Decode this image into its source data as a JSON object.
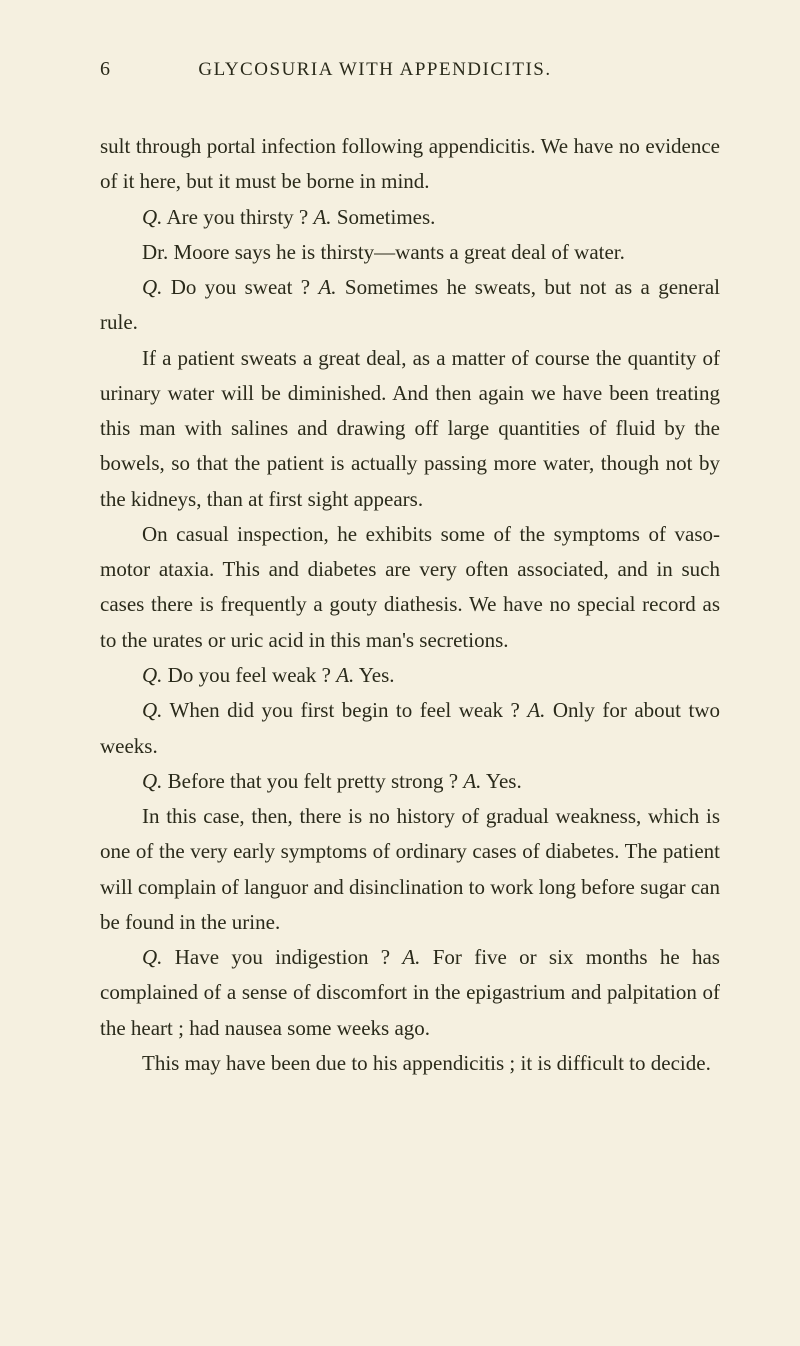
{
  "header": {
    "page_number": "6",
    "title": "GLYCOSURIA WITH APPENDICITIS."
  },
  "paragraphs": {
    "p1": "sult through portal infection following appendicitis. We have no evidence of it here, but it must be borne in mind.",
    "p2_q": "Q.",
    "p2_qtext": " Are you thirsty ?  ",
    "p2_a": "A.",
    "p2_atext": " Sometimes.",
    "p3": "Dr. Moore says he is thirsty—wants a great deal of water.",
    "p4_q": "Q.",
    "p4_qtext": " Do you sweat ?  ",
    "p4_a": "A.",
    "p4_atext": " Sometimes he sweats, but not as a general rule.",
    "p5": "If a patient sweats a great deal, as a matter of course the quantity of urinary water will be diminished. And then again we have been treating this man with salines and drawing off large quantities of fluid by the bowels, so that the patient is actually passing more water, though not by the kidneys, than at first sight appears.",
    "p6": "On casual inspection, he exhibits some of the symptoms of vaso-motor ataxia. This and diabetes are very often associated, and in such cases there is frequently a gouty diathesis. We have no special record as to the urates or uric acid in this man's secretions.",
    "p7_q": "Q.",
    "p7_qtext": " Do you feel weak ?  ",
    "p7_a": "A.",
    "p7_atext": " Yes.",
    "p8_q": "Q.",
    "p8_qtext": " When did you first begin to feel weak ?  ",
    "p8_a": "A.",
    "p8_atext": " Only for about two weeks.",
    "p9_q": "Q.",
    "p9_qtext": " Before that you felt pretty strong ?  ",
    "p9_a": "A.",
    "p9_atext": " Yes.",
    "p10": "In this case, then, there is no history of gradual weakness, which is one of the very early symptoms of ordinary cases of diabetes. The patient will complain of languor and disinclination to work long before sugar can be found in the urine.",
    "p11_q": "Q.",
    "p11_qtext": " Have you indigestion ?  ",
    "p11_a": "A.",
    "p11_atext": " For five or six months he has complained of a sense of discomfort in the epigastrium and palpitation of the heart ; had nausea some weeks ago.",
    "p12": "This may have been due to his appendicitis ; it is difficult to decide."
  }
}
